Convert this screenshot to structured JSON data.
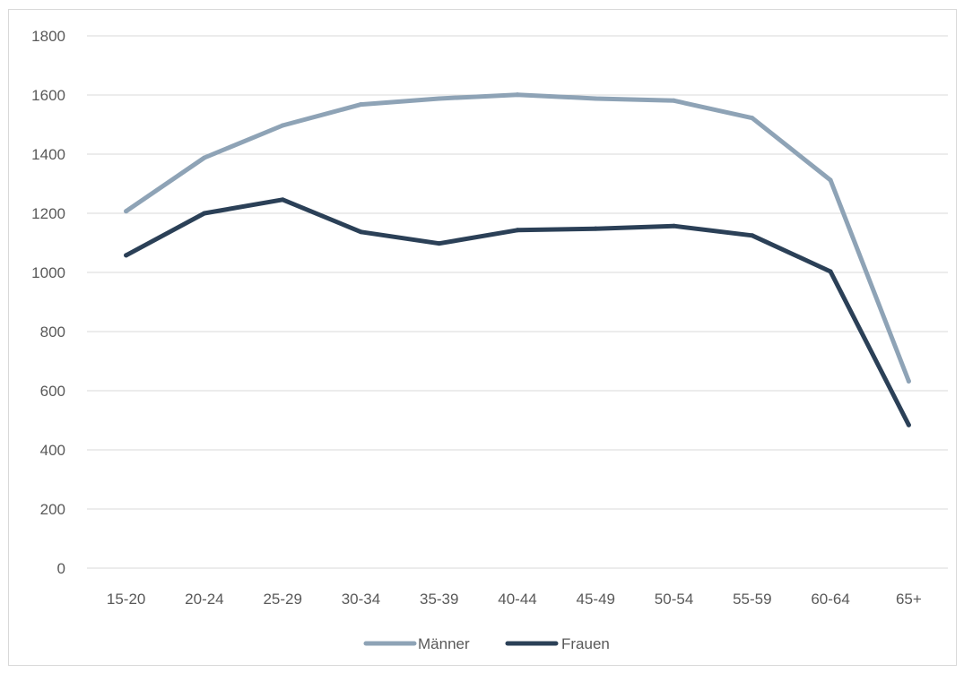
{
  "chart_data": {
    "type": "line",
    "title": "",
    "xlabel": "",
    "ylabel": "",
    "categories": [
      "15-20",
      "20-24",
      "25-29",
      "30-34",
      "35-39",
      "40-44",
      "45-49",
      "50-54",
      "55-59",
      "60-64",
      "65+"
    ],
    "ylim": [
      0,
      1800
    ],
    "yticks": [
      0,
      200,
      400,
      600,
      800,
      1000,
      1200,
      1400,
      1600,
      1800
    ],
    "grid": true,
    "legend_position": "bottom",
    "series": [
      {
        "name": "Männer",
        "color": "#8ea3b6",
        "values": [
          1207,
          1388,
          1497,
          1568,
          1588,
          1601,
          1588,
          1581,
          1522,
          1312,
          632
        ]
      },
      {
        "name": "Frauen",
        "color": "#2b4057",
        "values": [
          1058,
          1200,
          1246,
          1137,
          1098,
          1143,
          1148,
          1157,
          1125,
          1003,
          484
        ]
      }
    ]
  }
}
